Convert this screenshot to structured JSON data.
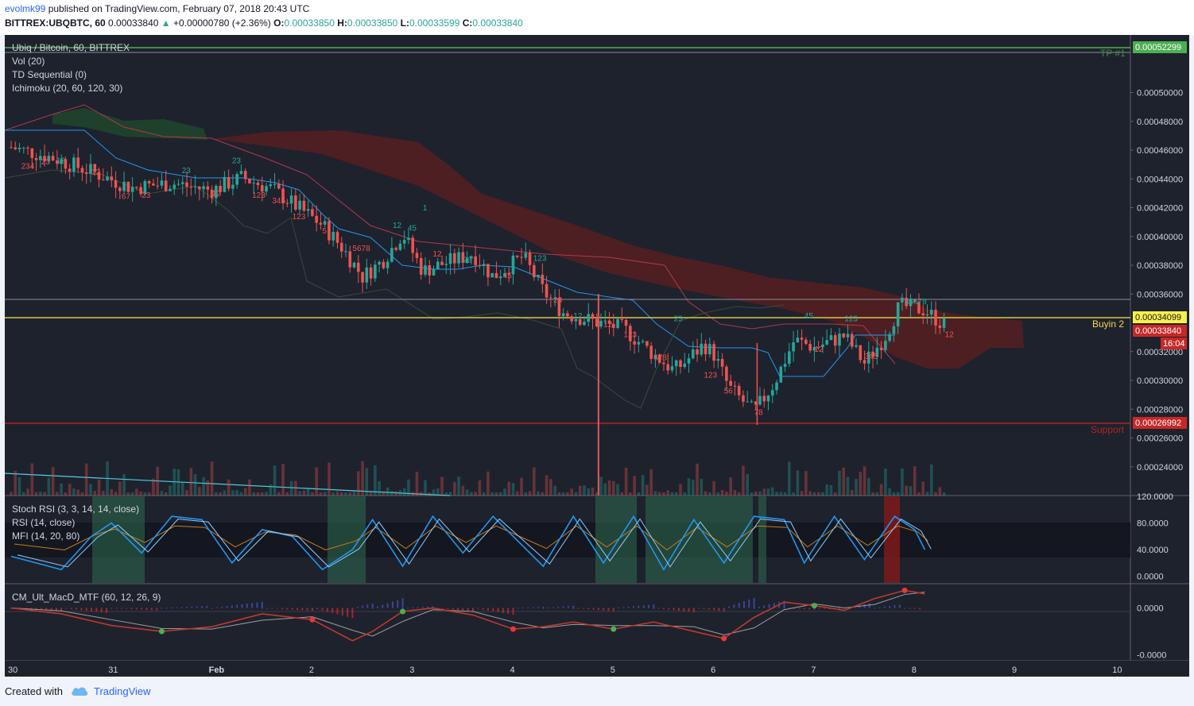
{
  "header": {
    "author": "evolmk99",
    "published": "published on TradingView.com, February 07, 2018 20:43 UTC",
    "symbol": "BITTREX:UBQBTC, 60",
    "last": "0.00033840",
    "change_arrow": "▲",
    "change": "+0.00000780 (+2.36%)",
    "o_label": "O:",
    "o": "0.00033850",
    "h_label": "H:",
    "h": "0.00033850",
    "l_label": "L:",
    "l": "0.00033599",
    "c_label": "C:",
    "c": "0.00033840"
  },
  "legend_main": [
    "Ubiq / Bitcoin, 60, BITTREX",
    "Vol (20)",
    "TD Sequential (0)",
    "Ichimoku (20, 60, 120, 30)"
  ],
  "legend_osc": [
    "Stoch RSI (3, 3, 14, 14, close)",
    "RSI (14, close)",
    "MFI (14, 20, 80)"
  ],
  "legend_macd": "CM_Ult_MacD_MTF (60, 12, 26, 9)",
  "annotations": {
    "tp1": "TP #1",
    "buyin2": "Buyin 2",
    "support": "Support"
  },
  "price_tags": {
    "tp1": "0.00052299",
    "buyin2": "0.00034099",
    "last": "0.00033840",
    "countdown": "16:04",
    "support": "0.00026992"
  },
  "footer": {
    "created_with": "Created with",
    "brand": "TradingView"
  },
  "colors": {
    "up": "#26a69a",
    "down": "#ef5350",
    "tp_line": "#4caf50",
    "buyin_line": "#d4c94a",
    "support_line": "#b22222",
    "cloud": "#5d1f1f",
    "base_line": "#2196f3"
  },
  "chart_data": [
    {
      "type": "candlestick",
      "title": "Ubiq / Bitcoin, 60, BITTREX",
      "ylim": [
        0.00022,
        0.00054
      ],
      "y_ticks": [
        "0.00050000",
        "0.00048000",
        "0.00046000",
        "0.00044000",
        "0.00042000",
        "0.00040000",
        "0.00038000",
        "0.00036000",
        "0.00032000",
        "0.00030000",
        "0.00028000",
        "0.00026000",
        "0.00024000"
      ],
      "x_ticks": [
        "30",
        "31",
        "Feb",
        "2",
        "3",
        "4",
        "5",
        "6",
        "7",
        "8",
        "9",
        "10"
      ],
      "x_range_days": [
        0,
        11
      ],
      "close_path": [
        [
          0.0,
          0.000462
        ],
        [
          0.4,
          0.000455
        ],
        [
          0.8,
          0.000445
        ],
        [
          1.2,
          0.000434
        ],
        [
          1.6,
          0.000437
        ],
        [
          2.0,
          0.000432
        ],
        [
          2.3,
          0.000441
        ],
        [
          2.6,
          0.000433
        ],
        [
          2.9,
          0.000418
        ],
        [
          3.1,
          0.000408
        ],
        [
          3.3,
          0.000392
        ],
        [
          3.5,
          0.000372
        ],
        [
          3.7,
          0.000383
        ],
        [
          3.9,
          0.000402
        ],
        [
          4.1,
          0.000376
        ],
        [
          4.3,
          0.000381
        ],
        [
          4.6,
          0.000388
        ],
        [
          4.8,
          0.000372
        ],
        [
          5.1,
          0.000386
        ],
        [
          5.3,
          0.000362
        ],
        [
          5.5,
          0.000347
        ],
        [
          5.8,
          0.000341
        ],
        [
          6.1,
          0.000336
        ],
        [
          6.4,
          0.000318
        ],
        [
          6.6,
          0.000307
        ],
        [
          6.7,
          0.000312
        ],
        [
          6.9,
          0.000325
        ],
        [
          7.0,
          0.000318
        ],
        [
          7.15,
          0.000295
        ],
        [
          7.4,
          0.000278
        ],
        [
          7.6,
          0.000298
        ],
        [
          7.8,
          0.000328
        ],
        [
          8.0,
          0.000323
        ],
        [
          8.3,
          0.000331
        ],
        [
          8.5,
          0.000312
        ],
        [
          8.7,
          0.00033
        ],
        [
          8.85,
          0.000352
        ],
        [
          9.1,
          0.000349
        ],
        [
          9.3,
          0.000338
        ]
      ],
      "levels": {
        "tp1": 0.00052299,
        "buyin2": 0.00034099,
        "support": 0.00026992,
        "grey": 0.000354
      }
    },
    {
      "type": "line",
      "title": "Stoch RSI (3, 3, 14, 14, close)",
      "ylim": [
        -10,
        120
      ],
      "y_ticks": [
        "120.0000",
        "80.0000",
        "40.0000",
        "0.0000"
      ],
      "series": [
        {
          "name": "Stoch RSI",
          "x": [
            0,
            0.5,
            0.8,
            1.0,
            1.3,
            1.6,
            1.9,
            2.2,
            2.5,
            2.8,
            3.1,
            3.4,
            3.6,
            3.9,
            4.2,
            4.5,
            4.8,
            5.0,
            5.3,
            5.6,
            5.9,
            6.2,
            6.5,
            6.8,
            7.1,
            7.4,
            7.7,
            7.9,
            8.2,
            8.5,
            8.8,
            9.0,
            9.1
          ],
          "y": [
            30,
            10,
            60,
            80,
            35,
            90,
            85,
            20,
            70,
            60,
            10,
            40,
            85,
            15,
            90,
            35,
            90,
            60,
            15,
            90,
            20,
            90,
            10,
            85,
            20,
            90,
            85,
            20,
            90,
            25,
            90,
            70,
            40
          ]
        }
      ]
    },
    {
      "type": "line",
      "title": "CM_Ult_MacD_MTF (60, 12, 26, 9)",
      "ylim": [
        -4.5e-05,
        2e-05
      ],
      "y_ticks": [
        "0.0000",
        "-0.0000"
      ],
      "series": [
        {
          "name": "MacD",
          "x": [
            0,
            0.5,
            1.0,
            1.5,
            2.0,
            2.5,
            3.0,
            3.4,
            3.6,
            3.9,
            4.2,
            4.6,
            5.0,
            5.3,
            5.6,
            6.0,
            6.4,
            6.8,
            7.1,
            7.4,
            7.7,
            8.0,
            8.3,
            8.6,
            8.9,
            9.1
          ],
          "y": [
            0,
            -5e-06,
            -1.5e-05,
            -2e-05,
            -1.6e-05,
            -5e-06,
            -1e-05,
            -2.8e-05,
            -2e-05,
            -3e-06,
            0,
            -6e-06,
            -1.8e-05,
            -1.6e-05,
            -1.2e-05,
            -1.8e-05,
            -1.2e-05,
            -2e-05,
            -2.6e-05,
            -8e-06,
            5e-06,
            2e-06,
            -2e-06,
            8e-06,
            1.5e-05,
            1.2e-05
          ]
        }
      ]
    }
  ]
}
